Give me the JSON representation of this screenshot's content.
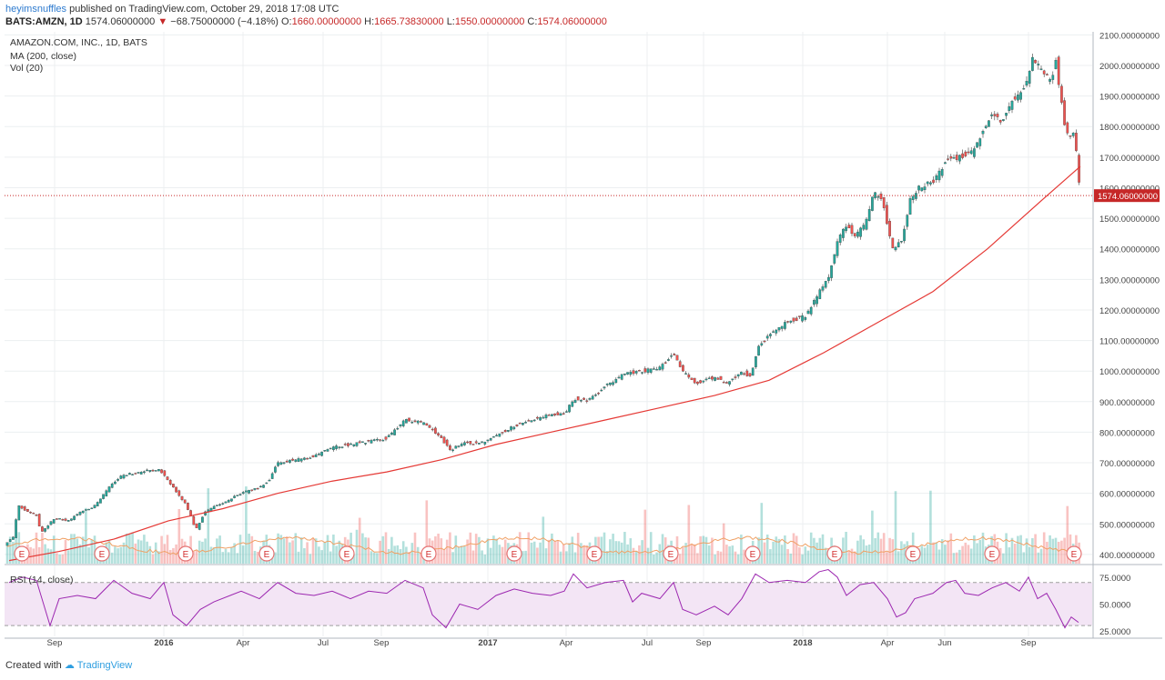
{
  "header": {
    "user": "heyimsnuffles",
    "published": " published on TradingView.com, October 29, 2018 17:08 UTC",
    "symbol": "BATS:AMZN, 1D",
    "last": "1574.06000000",
    "down_arrow": "▼",
    "change": "−68.75000000 (−4.18%)",
    "o_label": "O:",
    "o": "1660.00000000",
    "h_label": "H:",
    "h": "1665.73830000",
    "l_label": "L:",
    "l": "1550.00000000",
    "c_label": "C:",
    "c": "1574.06000000"
  },
  "legend": {
    "title": "AMAZON.COM, INC., 1D, BATS",
    "ma": "MA (200, close)",
    "vol": "Vol (20)",
    "rsi": "RSI (14, close)"
  },
  "footer": {
    "created": "Created with",
    "brand": "TradingView"
  },
  "colors": {
    "up": "#26a69a",
    "down": "#ef5350",
    "ma": "#e53935",
    "vol_ma": "#f0a064",
    "rsi": "#9c27b0",
    "rsi_band": "#f3e5f5",
    "grid": "#eceff1",
    "price_line": "#c62828"
  },
  "chart_data": {
    "type": "candlestick",
    "symbol": "AMAZON.COM, INC., 1D, BATS",
    "last_price_label": "1574.06000000",
    "price_ylim": [
      370,
      2110
    ],
    "price_ticks": [
      "2100.00000000",
      "2000.00000000",
      "1900.00000000",
      "1800.00000000",
      "1700.00000000",
      "1600.00000000",
      "1500.00000000",
      "1400.00000000",
      "1300.00000000",
      "1200.00000000",
      "1100.00000000",
      "1000.00000000",
      "900.00000000",
      "800.00000000",
      "700.00000000",
      "600.00000000",
      "500.00000000",
      "400.00000000"
    ],
    "rsi_ticks": [
      "75.0000",
      "50.0000",
      "25.0000"
    ],
    "rsi_ylim": [
      20,
      85
    ],
    "rsi_band": [
      30,
      70
    ],
    "x_labels": [
      "Sep",
      "2016",
      "Apr",
      "Jul",
      "Sep",
      "2017",
      "Apr",
      "Jul",
      "Sep",
      "2018",
      "Apr",
      "Jun",
      "Sep"
    ],
    "bold_x_labels": [
      "2016",
      "2017",
      "2018"
    ],
    "earnings_marker": "E",
    "earnings_count": 13,
    "price_path": [
      [
        0,
        430
      ],
      [
        10,
        460
      ],
      [
        15,
        560
      ],
      [
        25,
        540
      ],
      [
        35,
        530
      ],
      [
        40,
        470
      ],
      [
        55,
        520
      ],
      [
        70,
        510
      ],
      [
        85,
        540
      ],
      [
        100,
        560
      ],
      [
        115,
        620
      ],
      [
        130,
        660
      ],
      [
        150,
        670
      ],
      [
        170,
        680
      ],
      [
        180,
        640
      ],
      [
        190,
        600
      ],
      [
        200,
        560
      ],
      [
        210,
        480
      ],
      [
        220,
        540
      ],
      [
        240,
        570
      ],
      [
        260,
        600
      ],
      [
        280,
        620
      ],
      [
        290,
        640
      ],
      [
        300,
        700
      ],
      [
        320,
        710
      ],
      [
        340,
        720
      ],
      [
        360,
        750
      ],
      [
        380,
        760
      ],
      [
        400,
        770
      ],
      [
        420,
        780
      ],
      [
        440,
        840
      ],
      [
        460,
        830
      ],
      [
        470,
        810
      ],
      [
        480,
        780
      ],
      [
        490,
        740
      ],
      [
        505,
        770
      ],
      [
        520,
        760
      ],
      [
        540,
        790
      ],
      [
        560,
        820
      ],
      [
        580,
        840
      ],
      [
        600,
        860
      ],
      [
        615,
        860
      ],
      [
        625,
        910
      ],
      [
        640,
        900
      ],
      [
        660,
        950
      ],
      [
        680,
        990
      ],
      [
        700,
        1000
      ],
      [
        720,
        1010
      ],
      [
        735,
        1060
      ],
      [
        745,
        1000
      ],
      [
        760,
        960
      ],
      [
        780,
        980
      ],
      [
        795,
        960
      ],
      [
        810,
        1000
      ],
      [
        820,
        980
      ],
      [
        828,
        1080
      ],
      [
        840,
        1120
      ],
      [
        860,
        1160
      ],
      [
        880,
        1180
      ],
      [
        895,
        1260
      ],
      [
        905,
        1300
      ],
      [
        915,
        1420
      ],
      [
        925,
        1480
      ],
      [
        935,
        1440
      ],
      [
        945,
        1480
      ],
      [
        955,
        1580
      ],
      [
        965,
        1560
      ],
      [
        975,
        1400
      ],
      [
        985,
        1420
      ],
      [
        995,
        1560
      ],
      [
        1005,
        1600
      ],
      [
        1020,
        1620
      ],
      [
        1035,
        1690
      ],
      [
        1050,
        1700
      ],
      [
        1065,
        1720
      ],
      [
        1075,
        1780
      ],
      [
        1085,
        1850
      ],
      [
        1095,
        1810
      ],
      [
        1105,
        1880
      ],
      [
        1115,
        1900
      ],
      [
        1125,
        1960
      ],
      [
        1130,
        2030
      ],
      [
        1140,
        1980
      ],
      [
        1150,
        1950
      ],
      [
        1155,
        2020
      ],
      [
        1160,
        1900
      ],
      [
        1165,
        1800
      ],
      [
        1170,
        1760
      ],
      [
        1175,
        1780
      ],
      [
        1180,
        1640
      ],
      [
        1182,
        1574
      ]
    ],
    "ma200_path": [
      [
        5,
        380
      ],
      [
        60,
        410
      ],
      [
        120,
        450
      ],
      [
        180,
        510
      ],
      [
        240,
        550
      ],
      [
        300,
        600
      ],
      [
        360,
        640
      ],
      [
        420,
        670
      ],
      [
        480,
        710
      ],
      [
        540,
        760
      ],
      [
        600,
        800
      ],
      [
        660,
        840
      ],
      [
        720,
        880
      ],
      [
        780,
        920
      ],
      [
        840,
        970
      ],
      [
        900,
        1060
      ],
      [
        960,
        1160
      ],
      [
        1020,
        1260
      ],
      [
        1080,
        1400
      ],
      [
        1140,
        1560
      ],
      [
        1182,
        1670
      ]
    ],
    "rsi_path": [
      [
        5,
        70
      ],
      [
        20,
        75
      ],
      [
        35,
        72
      ],
      [
        50,
        30
      ],
      [
        60,
        55
      ],
      [
        80,
        58
      ],
      [
        100,
        55
      ],
      [
        120,
        72
      ],
      [
        140,
        60
      ],
      [
        160,
        55
      ],
      [
        175,
        70
      ],
      [
        185,
        40
      ],
      [
        200,
        30
      ],
      [
        215,
        45
      ],
      [
        230,
        52
      ],
      [
        260,
        62
      ],
      [
        280,
        55
      ],
      [
        300,
        70
      ],
      [
        320,
        60
      ],
      [
        340,
        58
      ],
      [
        360,
        62
      ],
      [
        380,
        55
      ],
      [
        400,
        62
      ],
      [
        420,
        60
      ],
      [
        440,
        72
      ],
      [
        460,
        65
      ],
      [
        470,
        40
      ],
      [
        485,
        28
      ],
      [
        500,
        50
      ],
      [
        520,
        45
      ],
      [
        540,
        58
      ],
      [
        560,
        64
      ],
      [
        580,
        60
      ],
      [
        600,
        58
      ],
      [
        615,
        62
      ],
      [
        625,
        78
      ],
      [
        640,
        65
      ],
      [
        660,
        70
      ],
      [
        680,
        72
      ],
      [
        690,
        52
      ],
      [
        700,
        60
      ],
      [
        720,
        55
      ],
      [
        735,
        70
      ],
      [
        745,
        45
      ],
      [
        760,
        40
      ],
      [
        780,
        48
      ],
      [
        795,
        40
      ],
      [
        810,
        55
      ],
      [
        825,
        78
      ],
      [
        840,
        70
      ],
      [
        860,
        72
      ],
      [
        880,
        70
      ],
      [
        895,
        80
      ],
      [
        905,
        82
      ],
      [
        915,
        75
      ],
      [
        925,
        58
      ],
      [
        940,
        68
      ],
      [
        955,
        70
      ],
      [
        970,
        55
      ],
      [
        980,
        38
      ],
      [
        990,
        42
      ],
      [
        1000,
        55
      ],
      [
        1020,
        60
      ],
      [
        1035,
        70
      ],
      [
        1045,
        72
      ],
      [
        1055,
        60
      ],
      [
        1070,
        58
      ],
      [
        1085,
        65
      ],
      [
        1100,
        70
      ],
      [
        1115,
        62
      ],
      [
        1125,
        75
      ],
      [
        1135,
        55
      ],
      [
        1145,
        60
      ],
      [
        1155,
        45
      ],
      [
        1165,
        28
      ],
      [
        1172,
        38
      ],
      [
        1180,
        33
      ]
    ]
  }
}
